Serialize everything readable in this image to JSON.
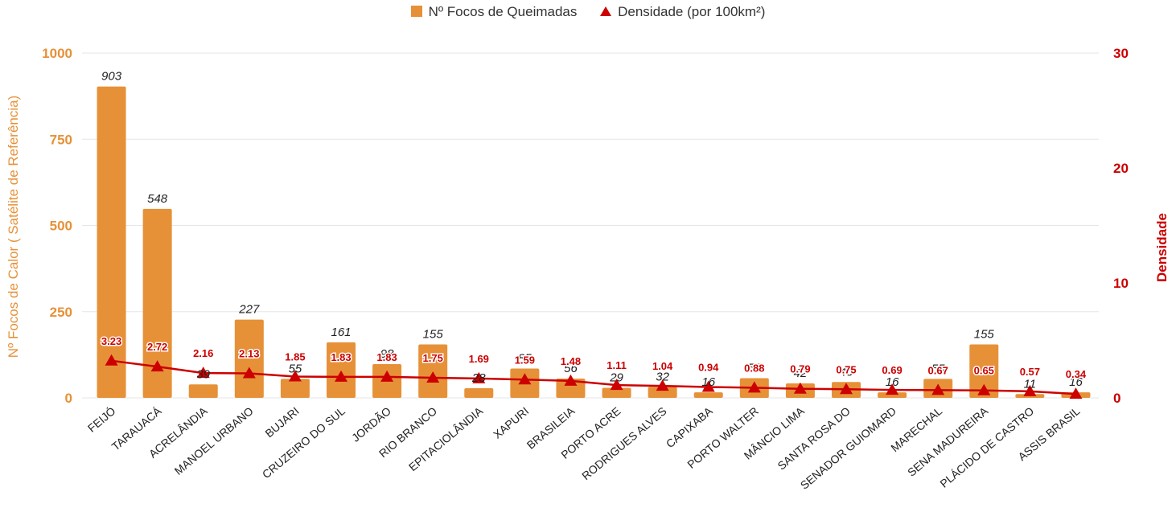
{
  "colors": {
    "bar": "#E69138",
    "line": "#CC0000",
    "grid": "#E6E6E6",
    "left_axis_text": "#E69138",
    "right_axis_text": "#CC0000",
    "category_text": "#222222",
    "bar_label_text": "#222222"
  },
  "chart_data": {
    "type": "bar",
    "categories": [
      "FEIJÓ",
      "TARAUACÁ",
      "ACRELÂNDIA",
      "MANOEL URBANO",
      "BUJARI",
      "CRUZEIRO DO SUL",
      "JORDÃO",
      "RIO BRANCO",
      "EPITACIOLÂNDIA",
      "XAPURI",
      "BRASILEIA",
      "PORTO ACRE",
      "RODRIGUES ALVES",
      "CAPIXABA",
      "PORTO WALTER",
      "MÂNCIO LIMA",
      "SANTA ROSA DO",
      "SENADOR GUIOMARD",
      "MARECHAL",
      "SENA MADUREIRA",
      "PLÁCIDO DE CASTRO",
      "ASSIS BRASIL"
    ],
    "series": [
      {
        "name": "Nº Focos de Queimadas",
        "type": "bar",
        "axis": "left",
        "values": [
          903,
          548,
          39,
          227,
          55,
          161,
          98,
          155,
          28,
          85,
          56,
          29,
          32,
          16,
          57,
          42,
          46,
          16,
          55,
          155,
          11,
          16
        ],
        "labels": [
          "903",
          "548",
          "39",
          "227",
          "55",
          "161",
          "98",
          "155",
          "28",
          "85",
          "56",
          "29",
          "32",
          "16",
          "57",
          "42",
          "46",
          "16",
          "55",
          "155",
          "11",
          "16"
        ]
      },
      {
        "name": "Densidade (por 100km²)",
        "type": "line",
        "axis": "right",
        "values": [
          3.23,
          2.72,
          2.16,
          2.13,
          1.85,
          1.83,
          1.83,
          1.75,
          1.69,
          1.59,
          1.48,
          1.11,
          1.04,
          0.94,
          0.88,
          0.79,
          0.75,
          0.69,
          0.67,
          0.65,
          0.57,
          0.34
        ],
        "labels": [
          "3.23",
          "2.72",
          "2.16",
          "2.13",
          "1.85",
          "1.83",
          "1.83",
          "1.75",
          "1.69",
          "1.59",
          "1.48",
          "1.11",
          "1.04",
          "0.94",
          "0.88",
          "0.79",
          "0.75",
          "0.69",
          "0.67",
          "0.65",
          "0.57",
          "0.34"
        ]
      }
    ],
    "ylabel": "Nº Focos de Calor ( Satélite de Referência)",
    "y2label": "Densidade",
    "ylim": [
      0,
      1000
    ],
    "y2lim": [
      0,
      30
    ],
    "yticks": [
      "0",
      "250",
      "500",
      "750",
      "1000"
    ],
    "y2ticks": [
      "0",
      "10",
      "20",
      "30"
    ],
    "grid": true,
    "legend_position": "top-center"
  }
}
